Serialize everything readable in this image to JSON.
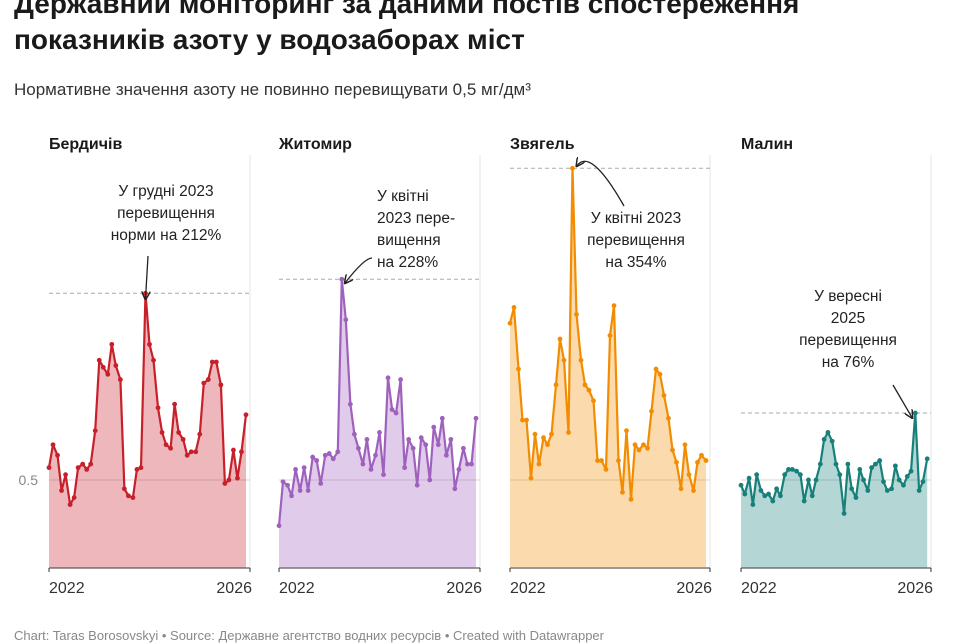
{
  "title": "Державний моніторинг за даними постів спостереження показників азоту у водозаборах міст",
  "subtitle": "Нормативне значення азоту не повинно перевищувати 0,5 мг/дм³",
  "footer": "Chart: Taras Borosovskyi • Source: Державне агентство водних ресурсів • Created with Datawrapper",
  "chart_data": [
    {
      "type": "area",
      "title": "Бердичів",
      "color": "#c8202a",
      "annotation": [
        "У грудні 2023",
        "перевищення",
        "норми на 212%"
      ],
      "x": [
        2022,
        2022.08,
        2022.17,
        2022.25,
        2022.33,
        2022.42,
        2022.5,
        2022.58,
        2022.67,
        2022.75,
        2022.83,
        2022.92,
        2023,
        2023.08,
        2023.17,
        2023.25,
        2023.33,
        2023.42,
        2023.5,
        2023.58,
        2023.67,
        2023.75,
        2023.83,
        2023.92,
        2024,
        2024.08,
        2024.17,
        2024.25,
        2024.33,
        2024.42,
        2024.5,
        2024.58,
        2024.67,
        2024.75,
        2024.83,
        2024.92,
        2025,
        2025.08,
        2025.17,
        2025.25,
        2025.33,
        2025.42,
        2025.5,
        2025.58,
        2025.67,
        2025.75,
        2025.83,
        2025.92
      ],
      "values": [
        0.57,
        0.7,
        0.64,
        0.44,
        0.53,
        0.36,
        0.4,
        0.57,
        0.59,
        0.56,
        0.59,
        0.78,
        1.18,
        1.14,
        1.1,
        1.27,
        1.15,
        1.07,
        0.45,
        0.41,
        0.4,
        0.56,
        0.57,
        1.56,
        1.27,
        1.18,
        0.91,
        0.77,
        0.7,
        0.68,
        0.93,
        0.77,
        0.73,
        0.64,
        0.66,
        0.66,
        0.76,
        1.05,
        1.07,
        1.17,
        1.17,
        1.04,
        0.48,
        0.5,
        0.67,
        0.51,
        0.66,
        0.87
      ],
      "xlim": [
        2022,
        2026
      ],
      "xticks": [
        2022,
        2026
      ],
      "ylim": [
        0,
        2.3
      ],
      "yticks": [
        0.5
      ]
    },
    {
      "type": "area",
      "title": "Житомир",
      "color": "#9f61bd",
      "annotation": [
        "У квітні",
        "2023 пере-",
        "вищення",
        "на 228%"
      ],
      "x": [
        2022,
        2022.08,
        2022.17,
        2022.25,
        2022.33,
        2022.42,
        2022.5,
        2022.58,
        2022.67,
        2022.75,
        2022.83,
        2022.92,
        2023,
        2023.08,
        2023.17,
        2023.25,
        2023.33,
        2023.42,
        2023.5,
        2023.58,
        2023.67,
        2023.75,
        2023.83,
        2023.92,
        2024,
        2024.08,
        2024.17,
        2024.25,
        2024.33,
        2024.42,
        2024.5,
        2024.58,
        2024.67,
        2024.75,
        2024.83,
        2024.92,
        2025,
        2025.08,
        2025.17,
        2025.25,
        2025.33,
        2025.42,
        2025.5,
        2025.58,
        2025.67,
        2025.75,
        2025.83,
        2025.92
      ],
      "values": [
        0.24,
        0.49,
        0.47,
        0.41,
        0.56,
        0.44,
        0.57,
        0.44,
        0.63,
        0.61,
        0.48,
        0.64,
        0.65,
        0.62,
        0.66,
        1.64,
        1.41,
        0.93,
        0.76,
        0.68,
        0.59,
        0.73,
        0.56,
        0.64,
        0.77,
        0.53,
        1.08,
        0.9,
        0.88,
        1.07,
        0.57,
        0.73,
        0.68,
        0.47,
        0.74,
        0.7,
        0.5,
        0.8,
        0.7,
        0.85,
        0.64,
        0.73,
        0.45,
        0.56,
        0.68,
        0.59,
        0.59,
        0.85
      ],
      "xlim": [
        2022,
        2026
      ],
      "xticks": [
        2022,
        2026
      ],
      "ylim": [
        0,
        2.3
      ],
      "yticks": [
        0.5
      ]
    },
    {
      "type": "area",
      "title": "Звягель",
      "color": "#f28c00",
      "annotation": [
        "У квітні 2023",
        "перевищення",
        "на 354%"
      ],
      "x": [
        2022,
        2022.08,
        2022.17,
        2022.25,
        2022.33,
        2022.42,
        2022.5,
        2022.58,
        2022.67,
        2022.75,
        2022.83,
        2022.92,
        2023,
        2023.08,
        2023.17,
        2023.25,
        2023.33,
        2023.42,
        2023.5,
        2023.58,
        2023.67,
        2023.75,
        2023.83,
        2023.92,
        2024,
        2024.08,
        2024.17,
        2024.25,
        2024.33,
        2024.42,
        2024.5,
        2024.58,
        2024.67,
        2024.75,
        2024.83,
        2024.92,
        2025,
        2025.08,
        2025.17,
        2025.25,
        2025.33,
        2025.42,
        2025.5,
        2025.58,
        2025.67,
        2025.75,
        2025.83,
        2025.92
      ],
      "values": [
        1.39,
        1.48,
        1.13,
        0.84,
        0.84,
        0.51,
        0.76,
        0.59,
        0.74,
        0.7,
        0.76,
        1.04,
        1.3,
        1.18,
        0.77,
        2.27,
        1.44,
        1.18,
        1.04,
        1.01,
        0.95,
        0.61,
        0.61,
        0.56,
        1.32,
        1.49,
        0.61,
        0.43,
        0.78,
        0.39,
        0.7,
        0.67,
        0.7,
        0.68,
        0.89,
        1.13,
        1.1,
        0.98,
        0.85,
        0.67,
        0.6,
        0.45,
        0.7,
        0.53,
        0.44,
        0.6,
        0.64,
        0.61
      ],
      "xlim": [
        2022,
        2026
      ],
      "xticks": [
        2022,
        2026
      ],
      "ylim": [
        0,
        2.3
      ],
      "yticks": [
        0.5
      ]
    },
    {
      "type": "area",
      "title": "Малин",
      "color": "#17807a",
      "annotation": [
        "У вересні",
        "2025",
        "перевищення",
        "на 76%"
      ],
      "x": [
        2022,
        2022.08,
        2022.17,
        2022.25,
        2022.33,
        2022.42,
        2022.5,
        2022.58,
        2022.67,
        2022.75,
        2022.83,
        2022.92,
        2023,
        2023.08,
        2023.17,
        2023.25,
        2023.33,
        2023.42,
        2023.5,
        2023.58,
        2023.67,
        2023.75,
        2023.83,
        2023.92,
        2024,
        2024.08,
        2024.17,
        2024.25,
        2024.33,
        2024.42,
        2024.5,
        2024.58,
        2024.67,
        2024.75,
        2024.83,
        2024.92,
        2025,
        2025.08,
        2025.17,
        2025.25,
        2025.33,
        2025.42,
        2025.5,
        2025.58,
        2025.67,
        2025.75,
        2025.83,
        2025.92
      ],
      "values": [
        0.47,
        0.42,
        0.51,
        0.36,
        0.53,
        0.44,
        0.41,
        0.42,
        0.38,
        0.45,
        0.41,
        0.53,
        0.56,
        0.56,
        0.55,
        0.53,
        0.38,
        0.5,
        0.41,
        0.5,
        0.59,
        0.73,
        0.77,
        0.72,
        0.59,
        0.53,
        0.31,
        0.59,
        0.45,
        0.4,
        0.56,
        0.5,
        0.44,
        0.57,
        0.59,
        0.61,
        0.49,
        0.44,
        0.45,
        0.58,
        0.5,
        0.47,
        0.52,
        0.55,
        0.88,
        0.44,
        0.49,
        0.62
      ],
      "xlim": [
        2022,
        2026
      ],
      "xticks": [
        2022,
        2026
      ],
      "ylim": [
        0,
        2.3
      ],
      "yticks": [
        0.5
      ]
    }
  ]
}
